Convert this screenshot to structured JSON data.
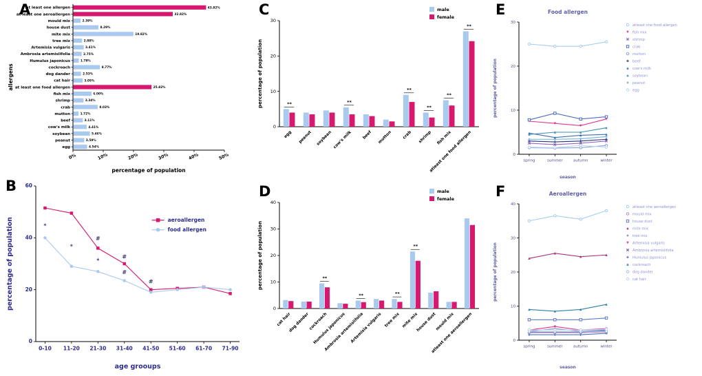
{
  "panels": {
    "A": "A",
    "B": "B",
    "C": "C",
    "D": "D",
    "E": "E",
    "F": "F"
  },
  "chart_data": [
    {
      "id": "A",
      "type": "bar",
      "orientation": "horizontal",
      "xlabel": "percentage of population",
      "ylabel": "allergens",
      "xlim": [
        0,
        50
      ],
      "xticks": [
        {
          "v": 0,
          "label": "0%"
        },
        {
          "v": 10,
          "label": "10%"
        },
        {
          "v": 20,
          "label": "20%"
        },
        {
          "v": 30,
          "label": "30%"
        },
        {
          "v": 40,
          "label": "40%"
        },
        {
          "v": 50,
          "label": "50%"
        }
      ],
      "categories": [
        "at least one allergen",
        "at least one aeroallergen",
        "mould mix",
        "house dust",
        "mite mix",
        "tree mix",
        "Artemisia vulgaris",
        "Ambrosia artemisiifolia",
        "Humulus japonicus",
        "cockroach",
        "dog dander",
        "cat hair",
        "at least one food allergen",
        "fish mix",
        "shrimp",
        "crab",
        "mutton",
        "beef",
        "cow's milk",
        "soybean",
        "peanut",
        "egg"
      ],
      "values": [
        43.82,
        32.82,
        2.39,
        8.29,
        19.82,
        2.88,
        3.41,
        2.75,
        1.78,
        8.77,
        2.53,
        3.05,
        25.82,
        6.0,
        3.34,
        8.03,
        1.72,
        3.11,
        4.41,
        5.46,
        3.59,
        4.54
      ],
      "value_labels": [
        "43.82%",
        "32.82%",
        "2.39%",
        "8.29%",
        "19.82%",
        "2.88%",
        "3.41%",
        "2.75%",
        "1.78%",
        "8.77%",
        "2.53%",
        "3.05%",
        "25.82%",
        "6.00%",
        "3.34%",
        "8.03%",
        "1.72%",
        "3.11%",
        "4.41%",
        "5.46%",
        "3.59%",
        "4.54%"
      ],
      "bar_color": "#a9c9ef",
      "highlight_color": "#d6186e",
      "highlight_indices": [
        0,
        1,
        12
      ]
    },
    {
      "id": "B",
      "type": "line",
      "x": [
        "0-10",
        "11-20",
        "21-30",
        "31-40",
        "41-50",
        "51-60",
        "61-70",
        "71-90"
      ],
      "xlabel": "age grooups",
      "ylabel": "percentage of population",
      "ylim": [
        0,
        60
      ],
      "yticks": [
        0,
        20,
        40,
        60
      ],
      "legend": "inside",
      "tick_bold": true,
      "tick_color": "#2d2d8f",
      "label_color": "#2d2d8f",
      "series": [
        {
          "name": "aeroallergen",
          "color": "#d6186e",
          "marker": "square",
          "values": [
            51.5,
            49.5,
            36,
            30,
            20,
            20.5,
            21,
            18.5
          ]
        },
        {
          "name": "food allergen",
          "color": "#a9c9ef",
          "marker": "circle",
          "values": [
            40,
            29,
            27,
            23.5,
            19,
            20,
            21,
            20
          ]
        }
      ],
      "annotations": [
        {
          "xi": 0,
          "y": 44,
          "text": "*"
        },
        {
          "xi": 1,
          "y": 36,
          "text": "*"
        },
        {
          "xi": 2,
          "y": 30.5,
          "text": "*"
        },
        {
          "xi": 2,
          "y": 39,
          "text": "#"
        },
        {
          "xi": 3,
          "y": 32,
          "text": "#"
        },
        {
          "xi": 3,
          "y": 26,
          "text": "#"
        },
        {
          "xi": 4,
          "y": 22.5,
          "text": "#"
        }
      ]
    },
    {
      "id": "C",
      "type": "bar",
      "orientation": "vertical",
      "ylabel": "percentage of population",
      "ylim": [
        0,
        30
      ],
      "yticks": [
        0,
        10,
        20,
        30
      ],
      "categories": [
        "egg",
        "peanut",
        "soybean",
        "cow's milk",
        "beef",
        "mutton",
        "crab",
        "shrimp",
        "fish mix",
        "atleast one food allergen"
      ],
      "series": [
        {
          "name": "male",
          "color": "#a9c9ef",
          "values": [
            5.0,
            4.0,
            4.6,
            5.5,
            3.5,
            2.0,
            9.0,
            4.0,
            7.5,
            27.0
          ]
        },
        {
          "name": "female",
          "color": "#d6186e",
          "values": [
            4.0,
            3.5,
            4.0,
            3.5,
            3.0,
            1.5,
            7.0,
            2.6,
            6.0,
            24.2
          ]
        }
      ],
      "sig": [
        0,
        3,
        6,
        7,
        8,
        9
      ],
      "sig_label": "**"
    },
    {
      "id": "D",
      "type": "bar",
      "orientation": "vertical",
      "ylabel": "percentage of population",
      "ylim": [
        0,
        40
      ],
      "yticks": [
        0,
        10,
        20,
        30,
        40
      ],
      "categories": [
        "cat hair",
        "dog dander",
        "cockroach",
        "Humulus japonicus",
        "Ambrosia artemisiifolia",
        "Artemisia vulgaris",
        "tree mix",
        "mite mix",
        "house dust",
        "mould mix",
        "atleast one aeroallergen"
      ],
      "series": [
        {
          "name": "male",
          "color": "#a9c9ef",
          "values": [
            3.2,
            2.6,
            9.5,
            2.0,
            3.0,
            3.6,
            3.6,
            21.5,
            6.0,
            2.5,
            34.0
          ]
        },
        {
          "name": "female",
          "color": "#d6186e",
          "values": [
            2.8,
            2.6,
            8.0,
            1.8,
            2.4,
            3.0,
            2.5,
            18.0,
            6.5,
            2.5,
            31.5
          ]
        }
      ],
      "sig": [
        2,
        4,
        6,
        7
      ],
      "sig_label": "**"
    },
    {
      "id": "E",
      "type": "line",
      "title": "Food allergen",
      "x": [
        "spring",
        "summer",
        "autumn",
        "winter"
      ],
      "xlabel": "season",
      "ylabel": "percentage of population",
      "ylim": [
        0,
        30
      ],
      "yticks": [
        0,
        10,
        20,
        30
      ],
      "legend": "right",
      "title_color": "#5b5ea6",
      "label_color": "#5b5ea6",
      "tick_color": "#4a4a8a",
      "legend_text_color": "#8b90d9",
      "series": [
        {
          "name": "atleast one food allergen",
          "color": "#a5cdf0",
          "marker": "circle-open",
          "values": [
            25.0,
            24.5,
            24.5,
            25.5
          ]
        },
        {
          "name": "fish mix",
          "color": "#e0368c",
          "marker": "triangle-down",
          "values": [
            7.5,
            7.0,
            6.5,
            8.0
          ]
        },
        {
          "name": "shrimp",
          "color": "#8d5fb8",
          "marker": "cross",
          "values": [
            2.5,
            2.2,
            2.5,
            3.0
          ]
        },
        {
          "name": "crab",
          "color": "#4f6bc4",
          "marker": "square-open",
          "values": [
            7.8,
            9.3,
            8.0,
            8.5
          ]
        },
        {
          "name": "mutton",
          "color": "#8aa0d8",
          "marker": "circle-open",
          "values": [
            1.5,
            1.4,
            1.5,
            2.0
          ]
        },
        {
          "name": "beef",
          "color": "#27357e",
          "marker": "plus",
          "values": [
            3.0,
            2.8,
            3.0,
            3.4
          ]
        },
        {
          "name": "cow's milk",
          "color": "#3c6fb0",
          "marker": "triangle-up",
          "values": [
            4.8,
            3.8,
            4.3,
            4.5
          ]
        },
        {
          "name": "soybean",
          "color": "#3f8fb5",
          "marker": "triangle-up",
          "values": [
            4.5,
            5.0,
            5.0,
            6.0
          ]
        },
        {
          "name": "peanut",
          "color": "#74aede",
          "marker": "diamond",
          "values": [
            3.4,
            3.4,
            3.5,
            4.0
          ]
        },
        {
          "name": "egg",
          "color": "#b9d7f0",
          "marker": "circle-open",
          "values": [
            1.6,
            1.5,
            2.0,
            1.6
          ]
        }
      ]
    },
    {
      "id": "F",
      "type": "line",
      "title": "Aeroallergen",
      "x": [
        "spring",
        "summer",
        "autumn",
        "winter"
      ],
      "xlabel": "season",
      "ylabel": "percentage of population",
      "ylim": [
        0,
        40
      ],
      "yticks": [
        0,
        10,
        20,
        30,
        40
      ],
      "legend": "right",
      "title_color": "#5b5ea6",
      "label_color": "#5b5ea6",
      "tick_color": "#4a4a8a",
      "legend_text_color": "#8b90d9",
      "series": [
        {
          "name": "atleast one aeroallergen",
          "color": "#a5cdf0",
          "marker": "circle-open",
          "values": [
            35.0,
            36.5,
            35.5,
            38.0
          ]
        },
        {
          "name": "mould mix",
          "color": "#b08bc9",
          "marker": "circle-open",
          "values": [
            2.2,
            2.2,
            2.2,
            2.4
          ]
        },
        {
          "name": "house dust",
          "color": "#5b79c9",
          "marker": "square-open",
          "values": [
            6.0,
            6.0,
            6.0,
            6.5
          ]
        },
        {
          "name": "mite mix",
          "color": "#a8327d",
          "marker": "triangle-up",
          "values": [
            24.0,
            25.5,
            24.5,
            25.0
          ]
        },
        {
          "name": "tree mix",
          "color": "#8292c9",
          "marker": "diamond",
          "values": [
            2.6,
            3.4,
            2.6,
            3.0
          ]
        },
        {
          "name": "Artemisia vulgaris",
          "color": "#e0368c",
          "marker": "triangle-down",
          "values": [
            3.0,
            4.0,
            3.0,
            3.4
          ]
        },
        {
          "name": "Ambrosia artemisiifolia",
          "color": "#7d5ba6",
          "marker": "cross",
          "values": [
            2.4,
            2.4,
            2.4,
            2.8
          ]
        },
        {
          "name": "Humulus japonicus",
          "color": "#4f6bc4",
          "marker": "plus",
          "values": [
            1.6,
            1.6,
            1.6,
            2.0
          ]
        },
        {
          "name": "cockroach",
          "color": "#2e7fa8",
          "marker": "triangle-up",
          "values": [
            9.0,
            8.5,
            9.0,
            10.5
          ]
        },
        {
          "name": "dog dander",
          "color": "#97c4e0",
          "marker": "circle-open",
          "values": [
            2.5,
            2.5,
            2.5,
            2.6
          ]
        },
        {
          "name": "cat hair",
          "color": "#bcd4ee",
          "marker": "circle-open",
          "values": [
            3.0,
            3.0,
            3.0,
            3.2
          ]
        }
      ]
    }
  ]
}
